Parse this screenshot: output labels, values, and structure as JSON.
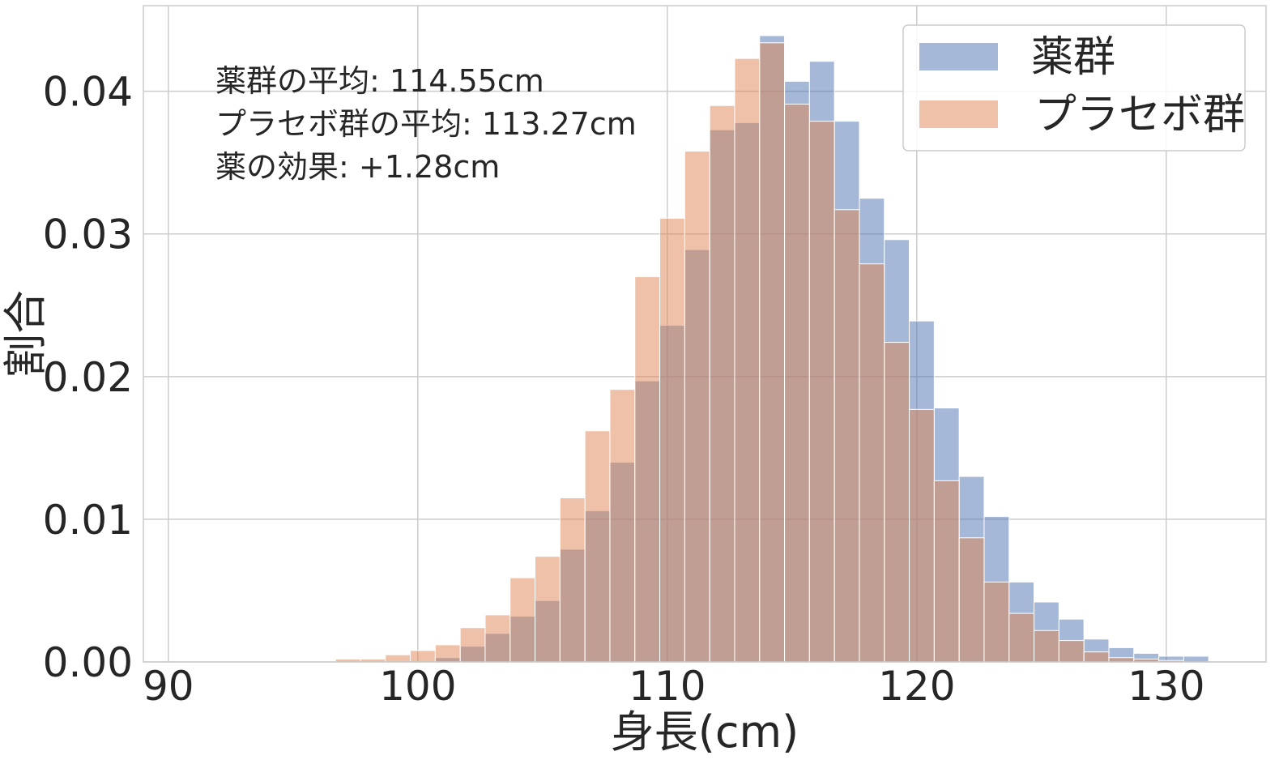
{
  "chart_data": {
    "type": "bar",
    "subtype": "overlaid histogram",
    "xlabel": "身長(cm)",
    "ylabel": "割合",
    "xlim": [
      89,
      134
    ],
    "ylim": [
      0,
      0.046
    ],
    "grid": true,
    "x_ticks": [
      "90",
      "100",
      "110",
      "120",
      "130"
    ],
    "y_ticks": [
      "0.00",
      "0.01",
      "0.02",
      "0.03",
      "0.04"
    ],
    "legend": {
      "position": "top-right"
    },
    "annotations": [
      "薬群の平均: 114.55cm",
      "プラセボ群の平均: 113.27cm",
      "薬の効果: +1.28cm"
    ],
    "bin_width": 1,
    "series": [
      {
        "name": "薬群",
        "color": "#4c72b0",
        "bins": [
          {
            "x": 101.2,
            "y": 0.0003
          },
          {
            "x": 102.2,
            "y": 0.0011
          },
          {
            "x": 103.2,
            "y": 0.002
          },
          {
            "x": 104.2,
            "y": 0.0032
          },
          {
            "x": 105.2,
            "y": 0.0043
          },
          {
            "x": 106.2,
            "y": 0.0079
          },
          {
            "x": 107.2,
            "y": 0.0106
          },
          {
            "x": 108.2,
            "y": 0.014
          },
          {
            "x": 109.2,
            "y": 0.0197
          },
          {
            "x": 110.2,
            "y": 0.0236
          },
          {
            "x": 111.2,
            "y": 0.0289
          },
          {
            "x": 112.2,
            "y": 0.0373
          },
          {
            "x": 113.2,
            "y": 0.0378
          },
          {
            "x": 114.2,
            "y": 0.0439
          },
          {
            "x": 115.2,
            "y": 0.0407
          },
          {
            "x": 116.2,
            "y": 0.0421
          },
          {
            "x": 117.2,
            "y": 0.0379
          },
          {
            "x": 118.2,
            "y": 0.0325
          },
          {
            "x": 119.2,
            "y": 0.0296
          },
          {
            "x": 120.2,
            "y": 0.0239
          },
          {
            "x": 121.2,
            "y": 0.0178
          },
          {
            "x": 122.2,
            "y": 0.013
          },
          {
            "x": 123.2,
            "y": 0.0102
          },
          {
            "x": 124.2,
            "y": 0.0056
          },
          {
            "x": 125.2,
            "y": 0.0042
          },
          {
            "x": 126.2,
            "y": 0.003
          },
          {
            "x": 127.2,
            "y": 0.0016
          },
          {
            "x": 128.2,
            "y": 0.001
          },
          {
            "x": 129.2,
            "y": 0.0006
          },
          {
            "x": 130.2,
            "y": 0.0004
          },
          {
            "x": 131.2,
            "y": 0.0004
          }
        ]
      },
      {
        "name": "プラセボ群",
        "color": "#dd8452",
        "bins": [
          {
            "x": 97.2,
            "y": 0.0002
          },
          {
            "x": 98.2,
            "y": 0.0002
          },
          {
            "x": 99.2,
            "y": 0.0005
          },
          {
            "x": 100.2,
            "y": 0.0008
          },
          {
            "x": 101.2,
            "y": 0.0012
          },
          {
            "x": 102.2,
            "y": 0.0024
          },
          {
            "x": 103.2,
            "y": 0.0033
          },
          {
            "x": 104.2,
            "y": 0.0059
          },
          {
            "x": 105.2,
            "y": 0.0074
          },
          {
            "x": 106.2,
            "y": 0.0115
          },
          {
            "x": 107.2,
            "y": 0.0162
          },
          {
            "x": 108.2,
            "y": 0.0191
          },
          {
            "x": 109.2,
            "y": 0.027
          },
          {
            "x": 110.2,
            "y": 0.0311
          },
          {
            "x": 111.2,
            "y": 0.0358
          },
          {
            "x": 112.2,
            "y": 0.039
          },
          {
            "x": 113.2,
            "y": 0.0423
          },
          {
            "x": 114.2,
            "y": 0.0434
          },
          {
            "x": 115.2,
            "y": 0.0391
          },
          {
            "x": 116.2,
            "y": 0.0379
          },
          {
            "x": 117.2,
            "y": 0.0317
          },
          {
            "x": 118.2,
            "y": 0.0279
          },
          {
            "x": 119.2,
            "y": 0.0224
          },
          {
            "x": 120.2,
            "y": 0.0177
          },
          {
            "x": 121.2,
            "y": 0.0127
          },
          {
            "x": 122.2,
            "y": 0.0087
          },
          {
            "x": 123.2,
            "y": 0.0056
          },
          {
            "x": 124.2,
            "y": 0.0034
          },
          {
            "x": 125.2,
            "y": 0.0022
          },
          {
            "x": 126.2,
            "y": 0.0015
          },
          {
            "x": 127.2,
            "y": 0.0007
          },
          {
            "x": 128.2,
            "y": 0.0003
          },
          {
            "x": 129.2,
            "y": 0.0002
          },
          {
            "x": 130.2,
            "y": 0.0001
          }
        ]
      }
    ]
  }
}
